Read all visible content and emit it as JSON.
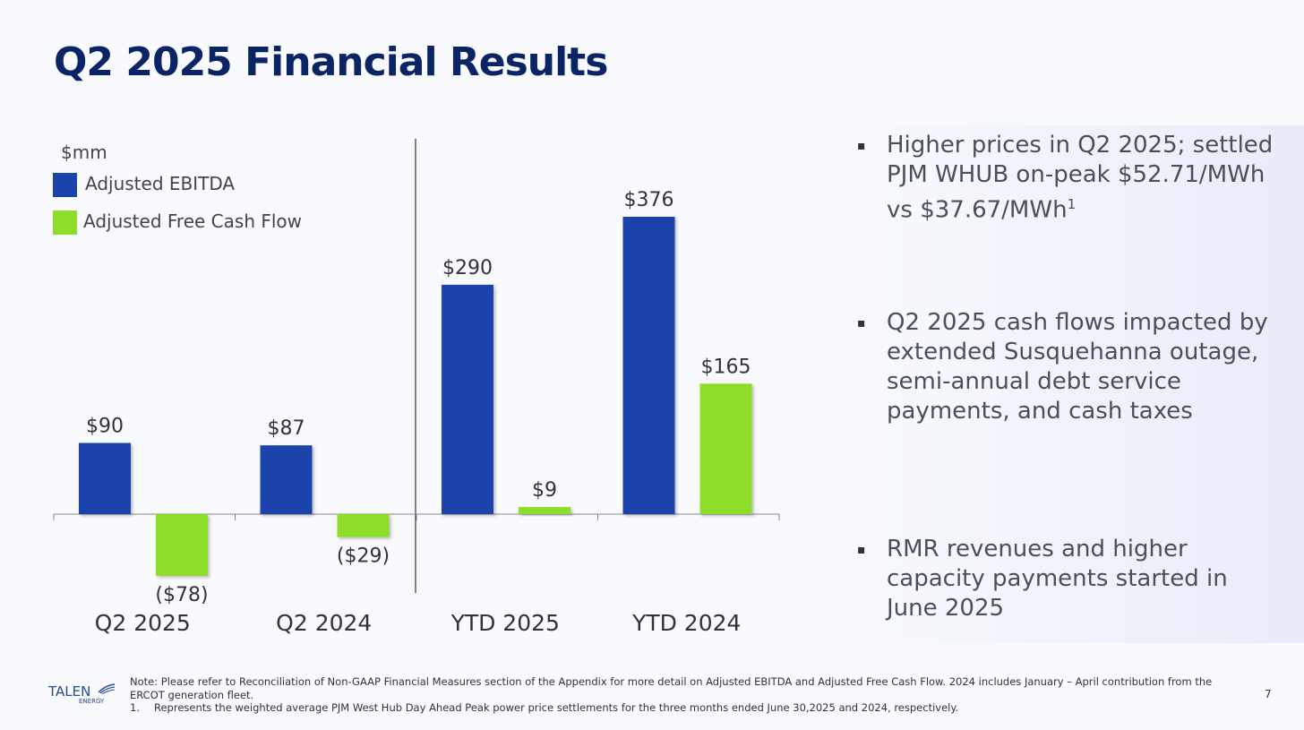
{
  "title": "Q2 2025 Financial Results",
  "colors": {
    "ebitda": "#1a43ab",
    "fcf": "#8ddd29",
    "title": "#0b2466"
  },
  "chart_data": {
    "type": "bar",
    "unit_label": "$mm",
    "categories": [
      "Q2 2025",
      "Q2 2024",
      "YTD 2025",
      "YTD  2024"
    ],
    "series": [
      {
        "name": "Adjusted EBITDA",
        "values": [
          90,
          87,
          290,
          376
        ],
        "labels": [
          "$90",
          "$87",
          "$290",
          "$376"
        ]
      },
      {
        "name": "Adjusted Free Cash Flow",
        "values": [
          -78,
          -29,
          9,
          165
        ],
        "labels": [
          "($78)",
          "($29)",
          "$9",
          "$165"
        ]
      }
    ],
    "ylim": [
      -100,
      400
    ],
    "xlabel": "",
    "ylabel": ""
  },
  "bullets": [
    {
      "marker": "▪",
      "text": "Higher prices in Q2 2025; settled PJM WHUB on-peak $52.71/MWh vs $37.67/MWh",
      "sup": "1"
    },
    {
      "marker": "▪",
      "text": "Q2 2025 cash flows impacted by extended Susquehanna outage, semi-annual debt service payments, and cash taxes"
    },
    {
      "marker": "▪",
      "text": "RMR revenues and higher capacity payments started in June 2025"
    }
  ],
  "footer": {
    "logo_text": "TALEN",
    "logo_sub": "ENERGY",
    "note": "Note: Please refer to Reconciliation of Non-GAAP Financial Measures section of the Appendix for more detail on Adjusted EBITDA and Adjusted Free Cash Flow. 2024 includes January – April contribution from the ERCOT generation fleet.",
    "footnote_number": "1.",
    "footnote": "Represents the weighted average PJM West Hub Day Ahead Peak power price settlements for the three months ended June 30,2025 and 2024, respectively.",
    "page_number": "7"
  }
}
